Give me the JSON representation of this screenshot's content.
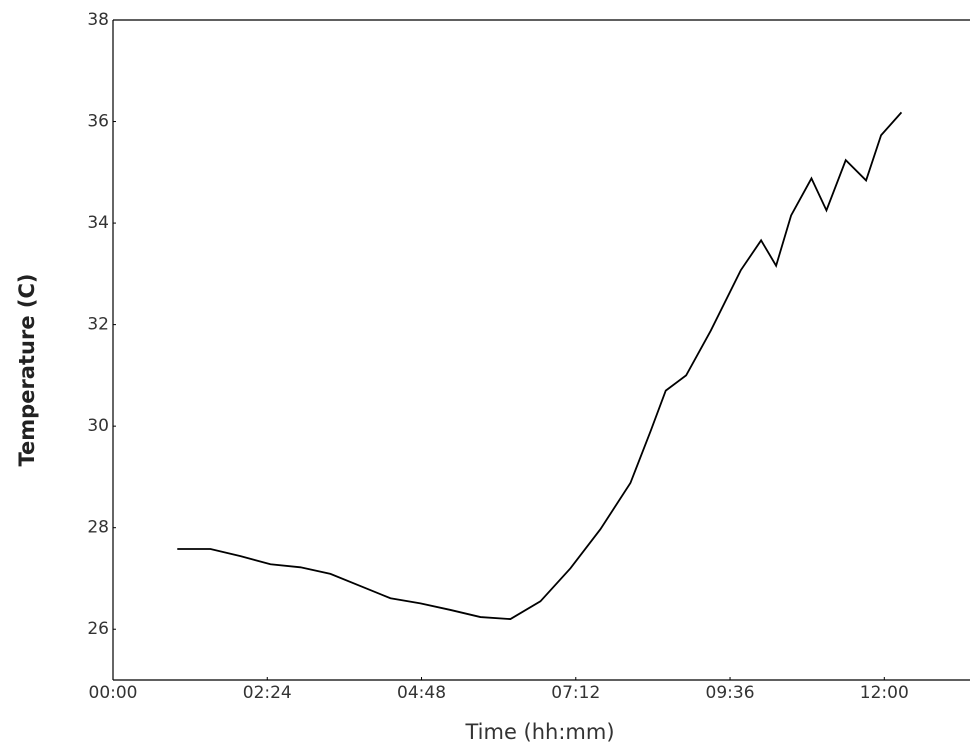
{
  "chart_data": {
    "type": "line",
    "x_label": "Time (hh:mm)",
    "y_label": "Temperature (C)",
    "xlim": [
      0,
      800
    ],
    "ylim": [
      25,
      38
    ],
    "xticks": [
      {
        "value": 0,
        "label": "00:00"
      },
      {
        "value": 144,
        "label": "02:24"
      },
      {
        "value": 288,
        "label": "04:48"
      },
      {
        "value": 432,
        "label": "07:12"
      },
      {
        "value": 576,
        "label": "09:36"
      },
      {
        "value": 720,
        "label": "12:00"
      }
    ],
    "yticks": [
      26,
      28,
      30,
      32,
      34,
      36,
      38
    ],
    "series": [
      {
        "color": "#000000",
        "x": [
          60,
          91,
          119,
          147,
          175,
          203,
          231,
          259,
          287,
          315,
          343,
          371,
          399,
          427,
          455,
          483,
          502,
          516,
          535,
          558,
          586,
          605,
          619,
          633,
          652,
          666,
          684,
          703,
          717,
          736
        ],
        "values": [
          27.58,
          27.58,
          27.44,
          27.28,
          27.22,
          27.09,
          26.85,
          26.61,
          26.51,
          26.38,
          26.24,
          26.2,
          26.55,
          27.2,
          27.97,
          28.88,
          29.91,
          30.7,
          31.0,
          31.88,
          33.07,
          33.66,
          33.16,
          34.15,
          34.88,
          34.25,
          35.24,
          34.84,
          35.73,
          36.18
        ]
      }
    ]
  }
}
